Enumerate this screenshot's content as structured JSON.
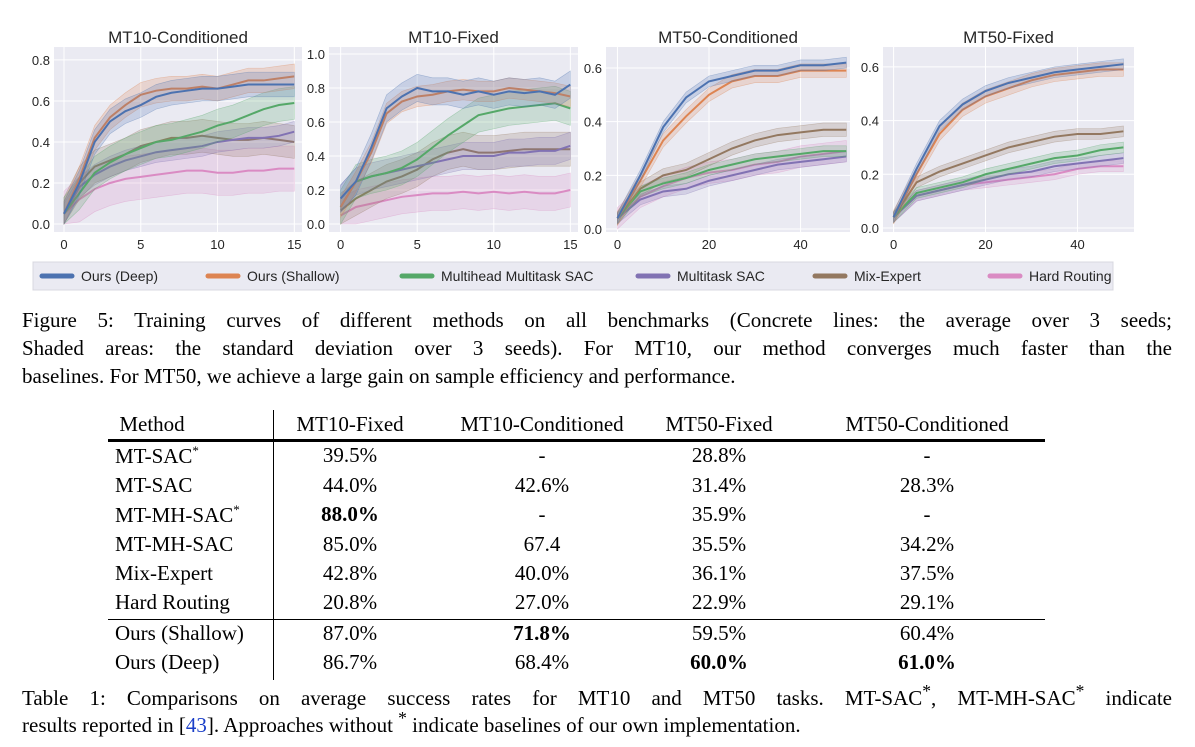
{
  "colors": {
    "Ours (Deep)": "#4c72b0",
    "Ours (Shallow)": "#dd8452",
    "Multihead Multitask SAC": "#55a868",
    "Multitask SAC": "#8172b3",
    "Mix-Expert": "#937860",
    "Hard Routing": "#da8bc3",
    "plot_bg": "#eaeaf2"
  },
  "legend": [
    "Ours (Deep)",
    "Ours (Shallow)",
    "Multihead Multitask SAC",
    "Multitask SAC",
    "Mix-Expert",
    "Hard Routing"
  ],
  "chart_data": [
    {
      "type": "line",
      "title": "MT10-Conditioned",
      "xlim": [
        -0.65,
        15.5
      ],
      "ylim": [
        -0.039,
        0.863
      ],
      "xticks": [
        0,
        5,
        10,
        15
      ],
      "yticks": [
        0.0,
        0.2,
        0.4,
        0.6,
        0.8
      ],
      "grid": true,
      "x": [
        0,
        1,
        2,
        3,
        4,
        5,
        6,
        7,
        8,
        9,
        10,
        11,
        12,
        13,
        14,
        15
      ],
      "series": [
        {
          "name": "Ours (Deep)",
          "std": 0.06,
          "values": [
            0.05,
            0.2,
            0.4,
            0.5,
            0.55,
            0.58,
            0.62,
            0.64,
            0.65,
            0.66,
            0.66,
            0.67,
            0.68,
            0.68,
            0.68,
            0.68
          ]
        },
        {
          "name": "Ours (Shallow)",
          "std": 0.06,
          "values": [
            0.05,
            0.22,
            0.42,
            0.52,
            0.58,
            0.63,
            0.65,
            0.66,
            0.66,
            0.67,
            0.66,
            0.68,
            0.7,
            0.7,
            0.71,
            0.72
          ]
        },
        {
          "name": "Multihead Multitask SAC",
          "std": 0.08,
          "values": [
            0.05,
            0.15,
            0.25,
            0.3,
            0.34,
            0.37,
            0.4,
            0.41,
            0.43,
            0.45,
            0.48,
            0.5,
            0.53,
            0.56,
            0.58,
            0.59
          ]
        },
        {
          "name": "Multitask SAC",
          "std": 0.05,
          "values": [
            0.05,
            0.18,
            0.24,
            0.28,
            0.31,
            0.33,
            0.35,
            0.36,
            0.37,
            0.38,
            0.4,
            0.41,
            0.42,
            0.42,
            0.43,
            0.45
          ]
        },
        {
          "name": "Mix-Expert",
          "std": 0.08,
          "values": [
            0.05,
            0.2,
            0.28,
            0.31,
            0.34,
            0.38,
            0.4,
            0.42,
            0.42,
            0.43,
            0.42,
            0.41,
            0.41,
            0.42,
            0.41,
            0.4
          ]
        },
        {
          "name": "Hard Routing",
          "std": 0.11,
          "values": [
            0.05,
            0.12,
            0.17,
            0.2,
            0.22,
            0.23,
            0.24,
            0.25,
            0.26,
            0.26,
            0.25,
            0.25,
            0.26,
            0.26,
            0.27,
            0.27
          ]
        }
      ]
    },
    {
      "type": "line",
      "title": "MT10-Fixed",
      "xlim": [
        -0.76,
        15.5
      ],
      "ylim": [
        -0.047,
        1.041
      ],
      "xticks": [
        0,
        5,
        10,
        15
      ],
      "yticks": [
        0.0,
        0.2,
        0.4,
        0.6,
        0.8,
        1.0
      ],
      "grid": true,
      "x": [
        0,
        1,
        2,
        3,
        4,
        5,
        6,
        7,
        8,
        9,
        10,
        11,
        12,
        13,
        14,
        15
      ],
      "series": [
        {
          "name": "Ours (Deep)",
          "std": 0.08,
          "values": [
            0.15,
            0.25,
            0.45,
            0.68,
            0.75,
            0.8,
            0.78,
            0.78,
            0.76,
            0.78,
            0.76,
            0.78,
            0.77,
            0.78,
            0.76,
            0.82
          ]
        },
        {
          "name": "Ours (Shallow)",
          "std": 0.06,
          "values": [
            0.1,
            0.25,
            0.42,
            0.65,
            0.72,
            0.75,
            0.76,
            0.78,
            0.79,
            0.78,
            0.78,
            0.8,
            0.79,
            0.78,
            0.77,
            0.75
          ]
        },
        {
          "name": "Multihead Multitask SAC",
          "std": 0.1,
          "values": [
            0.1,
            0.25,
            0.28,
            0.3,
            0.33,
            0.38,
            0.45,
            0.52,
            0.58,
            0.64,
            0.66,
            0.68,
            0.69,
            0.7,
            0.71,
            0.68
          ]
        },
        {
          "name": "Multitask SAC",
          "std": 0.08,
          "values": [
            0.15,
            0.25,
            0.28,
            0.3,
            0.32,
            0.34,
            0.36,
            0.38,
            0.4,
            0.4,
            0.4,
            0.42,
            0.42,
            0.43,
            0.43,
            0.46
          ]
        },
        {
          "name": "Mix-Expert",
          "std": 0.1,
          "values": [
            0.08,
            0.15,
            0.2,
            0.25,
            0.28,
            0.32,
            0.38,
            0.42,
            0.44,
            0.42,
            0.42,
            0.43,
            0.44,
            0.44,
            0.44,
            0.44
          ]
        },
        {
          "name": "Hard Routing",
          "std": 0.1,
          "values": [
            0.05,
            0.1,
            0.12,
            0.14,
            0.16,
            0.17,
            0.18,
            0.18,
            0.19,
            0.18,
            0.19,
            0.18,
            0.19,
            0.18,
            0.18,
            0.2
          ]
        }
      ]
    },
    {
      "type": "line",
      "title": "MT50-Conditioned",
      "xlim": [
        -2.5,
        50.8
      ],
      "ylim": [
        -0.011,
        0.678
      ],
      "xticks": [
        0,
        20,
        40
      ],
      "yticks": [
        0.0,
        0.2,
        0.4,
        0.6
      ],
      "grid": true,
      "x": [
        0,
        5,
        10,
        15,
        20,
        25,
        30,
        35,
        40,
        45,
        50
      ],
      "series": [
        {
          "name": "Ours (Deep)",
          "std": 0.02,
          "values": [
            0.04,
            0.2,
            0.38,
            0.49,
            0.55,
            0.57,
            0.59,
            0.59,
            0.61,
            0.61,
            0.62
          ]
        },
        {
          "name": "Ours (Shallow)",
          "std": 0.025,
          "values": [
            0.04,
            0.18,
            0.33,
            0.42,
            0.5,
            0.55,
            0.57,
            0.57,
            0.59,
            0.59,
            0.59
          ]
        },
        {
          "name": "Multihead Multitask SAC",
          "std": 0.02,
          "values": [
            0.04,
            0.14,
            0.17,
            0.19,
            0.22,
            0.24,
            0.26,
            0.27,
            0.28,
            0.29,
            0.29
          ]
        },
        {
          "name": "Multitask SAC",
          "std": 0.02,
          "values": [
            0.04,
            0.11,
            0.14,
            0.15,
            0.18,
            0.2,
            0.22,
            0.24,
            0.25,
            0.26,
            0.27
          ]
        },
        {
          "name": "Mix-Expert",
          "std": 0.025,
          "values": [
            0.04,
            0.15,
            0.2,
            0.22,
            0.26,
            0.3,
            0.33,
            0.35,
            0.36,
            0.37,
            0.37
          ]
        },
        {
          "name": "Hard Routing",
          "std": 0.04,
          "values": [
            0.04,
            0.12,
            0.16,
            0.19,
            0.21,
            0.22,
            0.24,
            0.25,
            0.27,
            0.28,
            0.29
          ]
        }
      ]
    },
    {
      "type": "line",
      "title": "MT50-Fixed",
      "xlim": [
        -2.3,
        52.3
      ],
      "ylim": [
        -0.015,
        0.674
      ],
      "xticks": [
        0,
        20,
        40
      ],
      "yticks": [
        0.0,
        0.2,
        0.4,
        0.6
      ],
      "grid": true,
      "x": [
        0,
        5,
        10,
        15,
        20,
        25,
        30,
        35,
        40,
        45,
        50
      ],
      "series": [
        {
          "name": "Ours (Deep)",
          "std": 0.02,
          "values": [
            0.04,
            0.22,
            0.38,
            0.46,
            0.51,
            0.54,
            0.56,
            0.58,
            0.59,
            0.6,
            0.61
          ]
        },
        {
          "name": "Ours (Shallow)",
          "std": 0.025,
          "values": [
            0.04,
            0.2,
            0.35,
            0.44,
            0.49,
            0.52,
            0.55,
            0.57,
            0.58,
            0.59,
            0.59
          ]
        },
        {
          "name": "Multihead Multitask SAC",
          "std": 0.02,
          "values": [
            0.04,
            0.13,
            0.15,
            0.17,
            0.2,
            0.22,
            0.24,
            0.26,
            0.27,
            0.29,
            0.3
          ]
        },
        {
          "name": "Multitask SAC",
          "std": 0.02,
          "values": [
            0.04,
            0.12,
            0.14,
            0.16,
            0.18,
            0.2,
            0.21,
            0.23,
            0.24,
            0.25,
            0.26
          ]
        },
        {
          "name": "Mix-Expert",
          "std": 0.02,
          "values": [
            0.04,
            0.17,
            0.21,
            0.24,
            0.27,
            0.3,
            0.32,
            0.34,
            0.35,
            0.35,
            0.36
          ]
        },
        {
          "name": "Hard Routing",
          "std": 0.02,
          "values": [
            0.04,
            0.12,
            0.14,
            0.16,
            0.17,
            0.18,
            0.19,
            0.2,
            0.22,
            0.23,
            0.23
          ]
        }
      ]
    }
  ],
  "figure_caption": [
    "Figure 5: Training curves of different methods on all benchmarks (Concrete lines: the average over 3 seeds;",
    "Shaded areas: the standard deviation over 3 seeds). For MT10, our method converges much faster than the",
    "baselines. For MT50, we achieve a large gain on sample efficiency and performance."
  ],
  "table": {
    "headers": [
      "Method",
      "MT10-Fixed",
      "MT10-Conditioned",
      "MT50-Fixed",
      "MT50-Conditioned"
    ],
    "rows": [
      {
        "method": "MT-SAC",
        "sup": "*",
        "cells": [
          "39.5%",
          "-",
          "28.8%",
          "-"
        ],
        "bold": []
      },
      {
        "method": "MT-SAC",
        "sup": "",
        "cells": [
          "44.0%",
          "42.6%",
          "31.4%",
          "28.3%"
        ],
        "bold": []
      },
      {
        "method": "MT-MH-SAC",
        "sup": "*",
        "cells": [
          "88.0%",
          "-",
          "35.9%",
          "-"
        ],
        "bold": [
          0
        ]
      },
      {
        "method": "MT-MH-SAC",
        "sup": "",
        "cells": [
          "85.0%",
          "67.4",
          "35.5%",
          "34.2%"
        ],
        "bold": []
      },
      {
        "method": "Mix-Expert",
        "sup": "",
        "cells": [
          "42.8%",
          "40.0%",
          "36.1%",
          "37.5%"
        ],
        "bold": []
      },
      {
        "method": "Hard Routing",
        "sup": "",
        "cells": [
          "20.8%",
          "27.0%",
          "22.9%",
          "29.1%"
        ],
        "bold": []
      },
      {
        "method": "Ours (Shallow)",
        "sup": "",
        "cells": [
          "87.0%",
          "71.8%",
          "59.5%",
          "60.4%"
        ],
        "bold": [
          1
        ]
      },
      {
        "method": "Ours (Deep)",
        "sup": "",
        "cells": [
          "86.7%",
          "68.4%",
          "60.0%",
          "61.0%"
        ],
        "bold": [
          2,
          3
        ]
      }
    ]
  },
  "table_caption": {
    "line1_a": "Table 1: Comparisons on average success rates for MT10 and MT50 tasks. MT-SAC",
    "line1_b": ", MT-MH-SAC",
    "line1_c": " indicate",
    "line2_a": "results reported in [",
    "line2_ref": "43",
    "line2_b": "]. Approaches without ",
    "line2_c": " indicate baselines of our own implementation.",
    "star": "*"
  }
}
